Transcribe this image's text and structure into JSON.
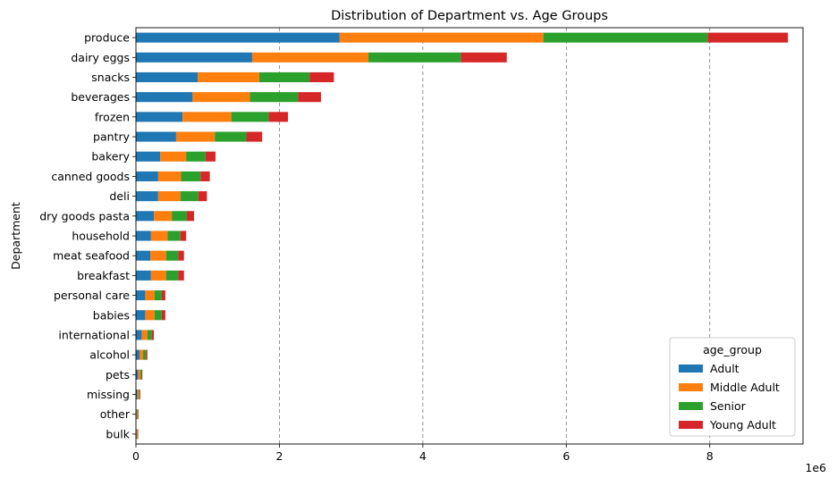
{
  "chart_data": {
    "type": "bar",
    "orientation": "horizontal",
    "stacked": true,
    "title": "Distribution of Department vs. Age Groups",
    "xlabel": "",
    "ylabel": "Department",
    "x_scale_label": "1e6",
    "xlim": [
      0,
      9300000
    ],
    "x_ticks": [
      0,
      2000000,
      4000000,
      6000000,
      8000000
    ],
    "x_tick_labels": [
      "0",
      "2",
      "4",
      "6",
      "8"
    ],
    "grid": "x, dashed",
    "legend": {
      "title": "age_group",
      "placement": "lower-right"
    },
    "categories": [
      "produce",
      "dairy eggs",
      "snacks",
      "beverages",
      "frozen",
      "pantry",
      "bakery",
      "canned goods",
      "deli",
      "dry goods pasta",
      "household",
      "meat seafood",
      "breakfast",
      "personal care",
      "babies",
      "international",
      "alcohol",
      "pets",
      "missing",
      "other",
      "bulk"
    ],
    "series": [
      {
        "name": "Adult",
        "color": "#1f77b4",
        "values": [
          2840000,
          1620000,
          860000,
          790000,
          650000,
          560000,
          340000,
          310000,
          310000,
          250000,
          210000,
          200000,
          210000,
          130000,
          130000,
          80000,
          50000,
          30000,
          20000,
          10000,
          10000
        ]
      },
      {
        "name": "Middle Adult",
        "color": "#ff7f0e",
        "values": [
          2840000,
          1620000,
          860000,
          800000,
          680000,
          540000,
          360000,
          320000,
          310000,
          250000,
          230000,
          220000,
          210000,
          130000,
          130000,
          80000,
          50000,
          30000,
          20000,
          10000,
          10000
        ]
      },
      {
        "name": "Senior",
        "color": "#2ca02c",
        "values": [
          2290000,
          1290000,
          700000,
          670000,
          520000,
          440000,
          270000,
          270000,
          250000,
          210000,
          180000,
          170000,
          170000,
          100000,
          100000,
          60000,
          40000,
          20000,
          10000,
          10000,
          5000
        ]
      },
      {
        "name": "Young Adult",
        "color": "#d62728",
        "values": [
          1120000,
          640000,
          340000,
          320000,
          270000,
          220000,
          140000,
          130000,
          120000,
          100000,
          80000,
          80000,
          80000,
          50000,
          50000,
          30000,
          20000,
          10000,
          10000,
          5000,
          3000
        ]
      }
    ]
  }
}
